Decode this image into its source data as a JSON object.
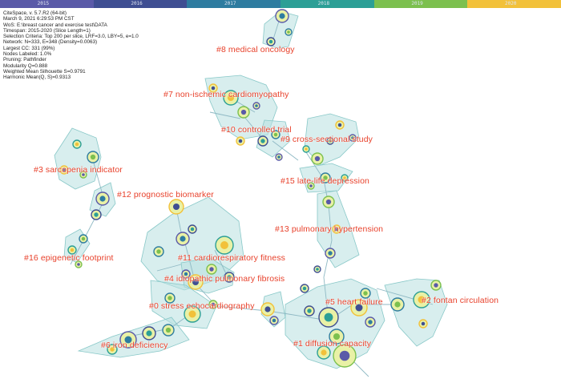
{
  "timeline": {
    "years": [
      "2015",
      "2016",
      "2017",
      "2018",
      "2019",
      "2020"
    ],
    "colors": [
      "#5a5aa8",
      "#3f4e92",
      "#2e7ca0",
      "#2c9f96",
      "#7cc04e",
      "#f2c13a"
    ]
  },
  "info_lines": [
    "CiteSpace, v. 5.7.R2 (64-bit)",
    "March 9, 2021 6:29:53 PM CST",
    "WoS: E:\\breast cancer and exercise test\\DATA",
    "Timespan: 2015-2020 (Slice Length=1)",
    "Selection Criteria: Top 200 per slice, LRF=3.0, LBY=5, e=1.0",
    "Network: N=333, E=348 (Density=0.0063)",
    "Largest CC: 331 (99%)",
    "Nodes Labeled: 1.0%",
    "Pruning: Pathfinder",
    "Modularity Q=0.888",
    "Weighted Mean Silhouette S=0.9791",
    "Harmonic Mean(Q, S)=0.9313"
  ],
  "clusters": [
    "#8 medical oncology",
    "#7 non-ischemic cardiomyopathy",
    "#10 controlled trial",
    "#9 cross-sectional study",
    "#3 sarcopenia indicator",
    "#15 late-life depression",
    "#12 prognostic biomarker",
    "#13 pulmonary hypertension",
    "#16 epigenetic footprint",
    "#11 cardiorespiratory fitness",
    "#4 idiopathic pulmonary fibrosis",
    "#5 heart failure",
    "#2 fontan circulation",
    "#0 stress echocardiography",
    "#6 iron deficiency",
    "#1 diffusion capacity"
  ],
  "colors": {
    "label": "#e8412b",
    "hull_fill": "#b8e0e0",
    "hull_stroke": "#88c8c8",
    "edge": "#8fb9c4"
  }
}
